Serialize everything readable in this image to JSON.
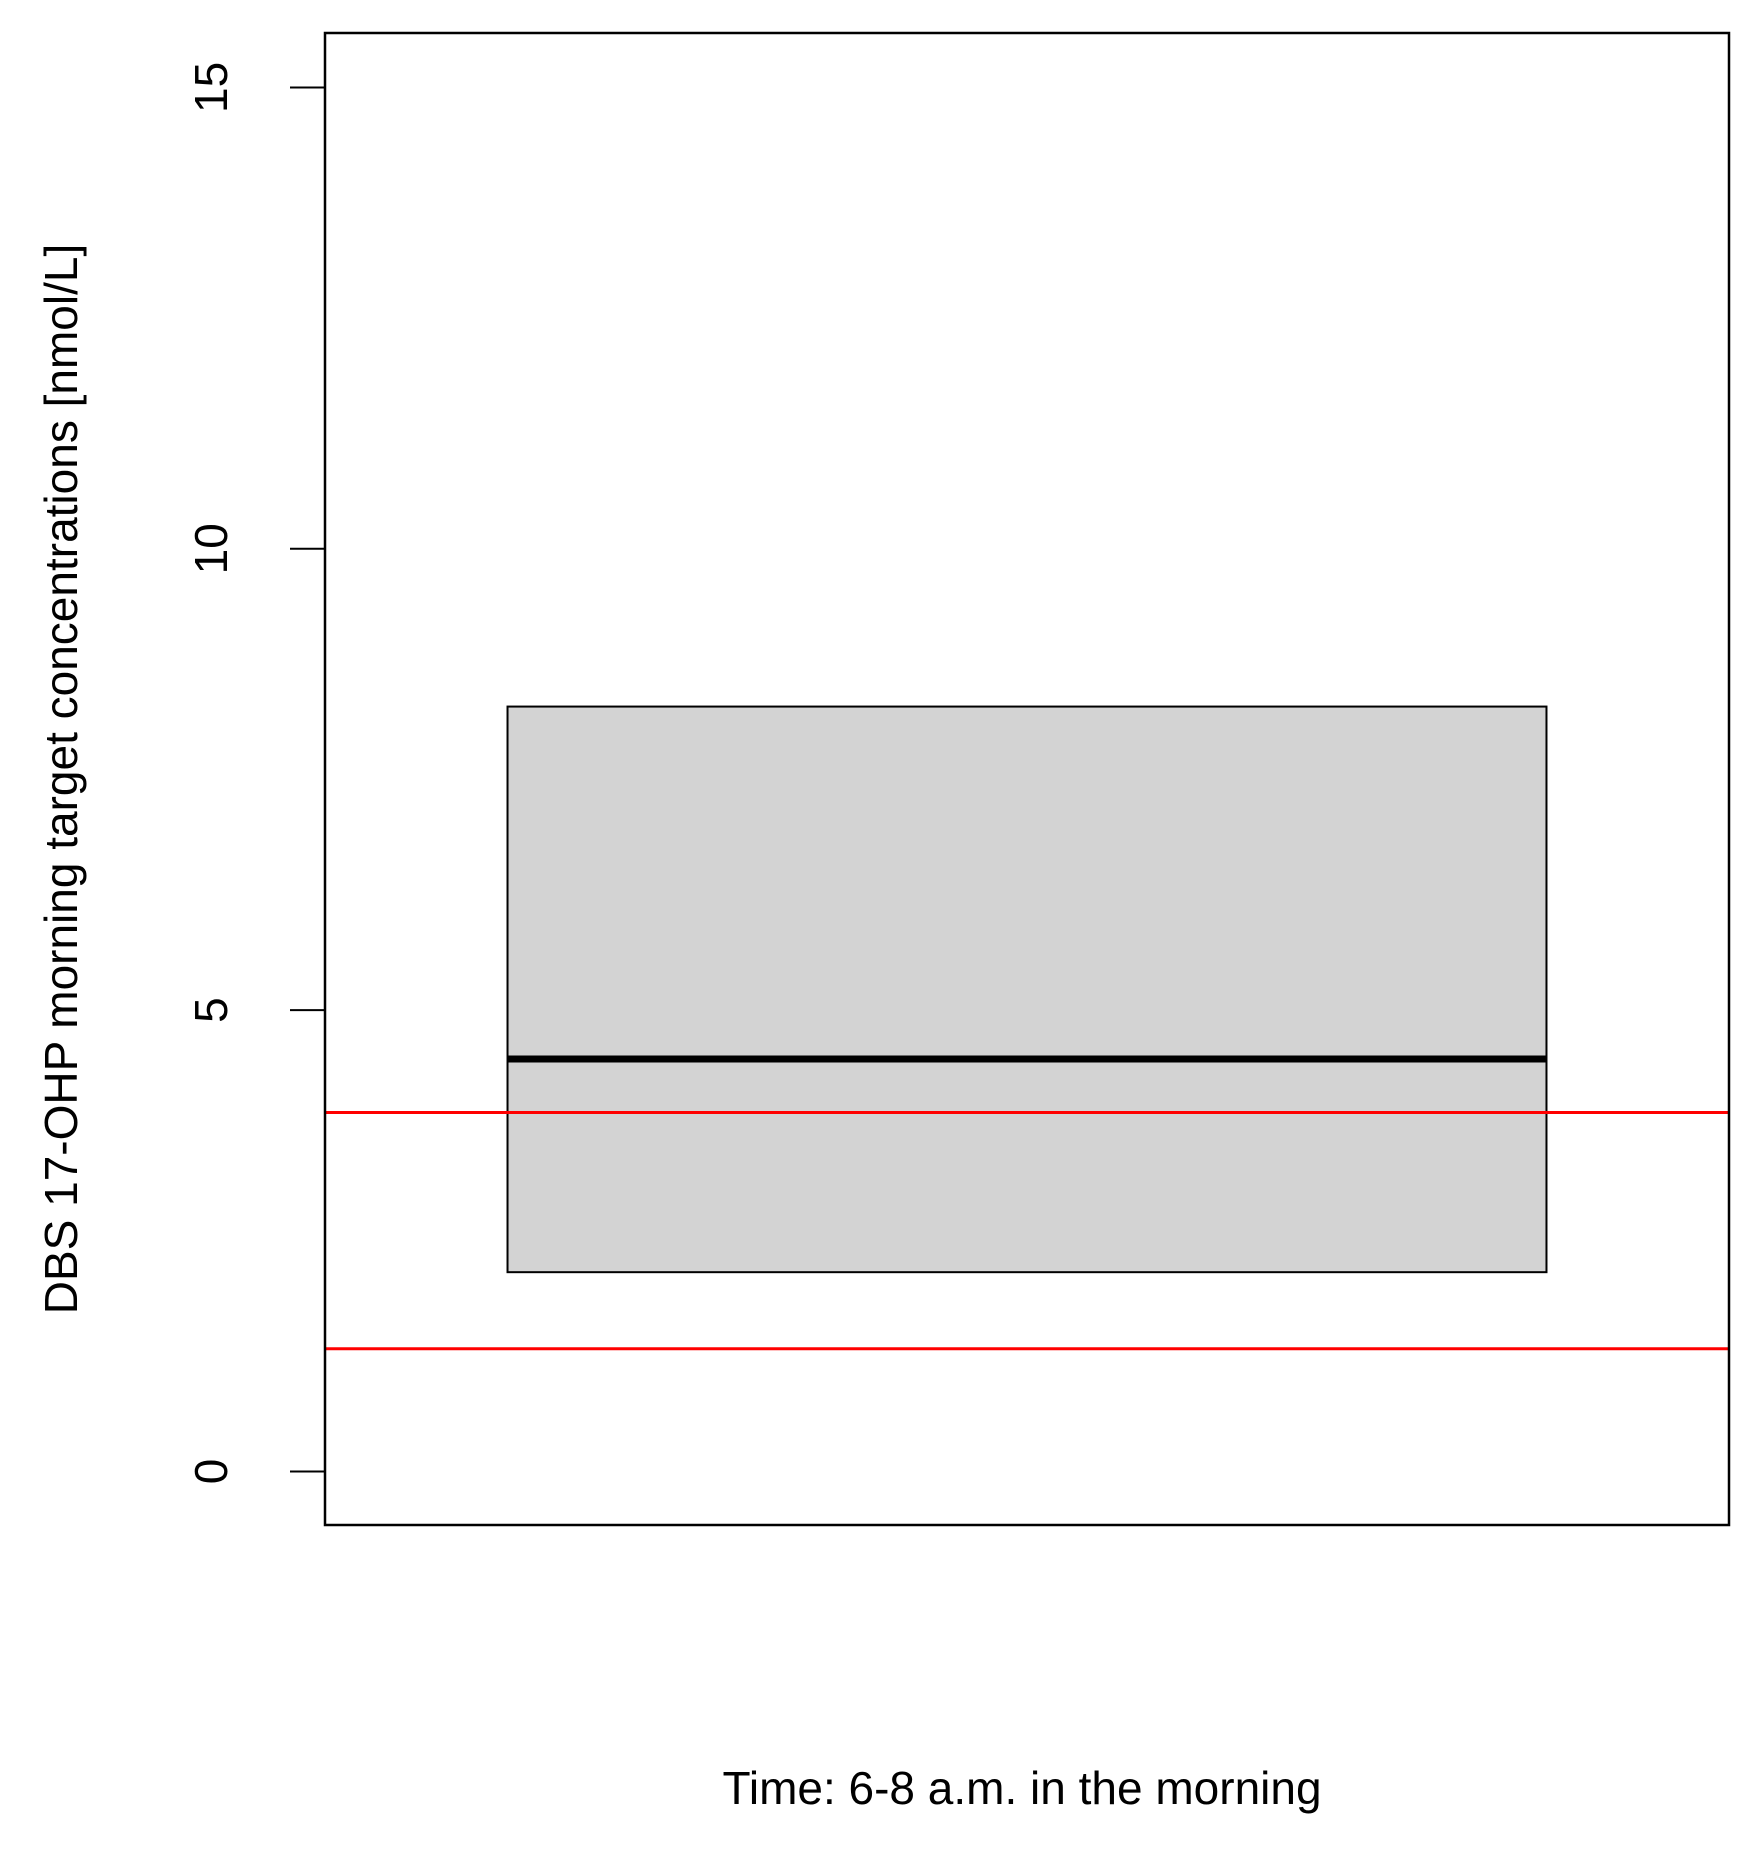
{
  "chart_data": {
    "type": "box",
    "xlabel": "Time: 6-8 a.m. in the morning",
    "ylabel": "DBS 17-OHP morning target concentrations [nmol/L]",
    "ylim": [
      -0.58,
      15.59
    ],
    "yticks": [
      0,
      5,
      10,
      15
    ],
    "boxes": [
      {
        "q1": 2.16,
        "median": 4.47,
        "q3": 8.29,
        "color": "#d3d3d3"
      }
    ],
    "reference_lines": [
      {
        "value": 3.89,
        "color": "#ff0000"
      },
      {
        "value": 1.33,
        "color": "#ff0000"
      }
    ]
  }
}
